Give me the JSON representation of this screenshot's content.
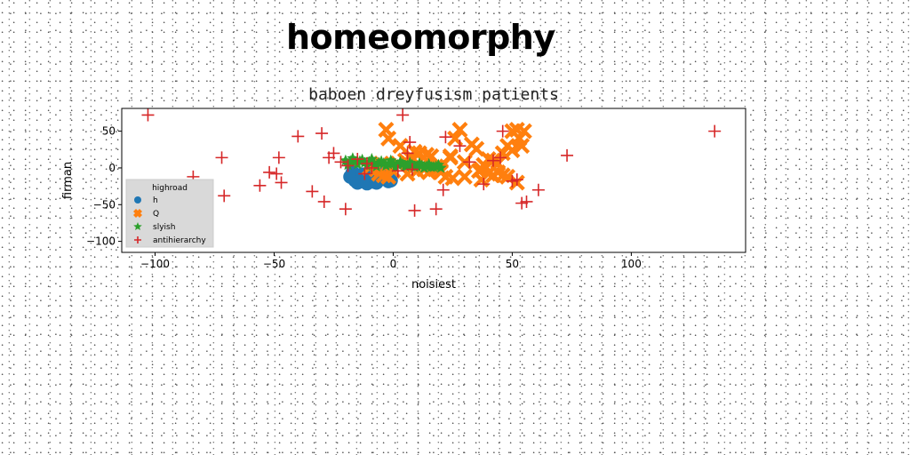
{
  "title": "homeomorphy",
  "chart_data": {
    "type": "scatter",
    "subtitle": "baboen dreyfusism patients",
    "xlabel": "noisiest",
    "ylabel": "firman",
    "xlim": [
      -114,
      148
    ],
    "ylim": [
      -115,
      81
    ],
    "xticks": [
      -100,
      -50,
      0,
      50,
      100
    ],
    "yticks": [
      50,
      0,
      -50,
      -100
    ],
    "grid": false,
    "legend": {
      "title": "highroad",
      "position": "lower-left"
    },
    "series": [
      {
        "name": "h",
        "marker": "circle",
        "color": "#1f77b4",
        "x": [
          -18,
          -16,
          -14,
          -12,
          -10,
          -8,
          -6,
          -4,
          -2,
          -1,
          -17,
          -13,
          -9,
          -5,
          -3,
          -15,
          -11,
          -7
        ],
        "y": [
          -12,
          -17,
          -18,
          -15,
          -13,
          -19,
          -16,
          -14,
          -18,
          -17,
          -6,
          -9,
          -8,
          -10,
          -7,
          -20,
          -21,
          -20
        ]
      },
      {
        "name": "Q",
        "marker": "x-bold",
        "color": "#ff7f0e",
        "x": [
          -10,
          -6,
          -4,
          -2,
          0,
          2,
          5,
          7,
          9,
          11,
          14,
          16,
          18,
          20,
          22,
          24,
          26,
          28,
          30,
          33,
          35,
          37,
          38,
          40,
          42,
          44,
          46,
          48,
          50,
          52,
          53,
          55,
          54,
          50,
          46,
          44,
          40,
          37,
          30,
          25,
          20,
          13,
          6,
          3,
          -3,
          -7,
          -2,
          10,
          15,
          19,
          24,
          48,
          52,
          36,
          42,
          8,
          -5
        ],
        "y": [
          0,
          -8,
          -10,
          -12,
          -4,
          6,
          10,
          14,
          22,
          20,
          18,
          16,
          2,
          -4,
          -12,
          14,
          40,
          52,
          8,
          32,
          26,
          -2,
          4,
          -8,
          10,
          -6,
          20,
          30,
          50,
          52,
          40,
          50,
          30,
          24,
          -10,
          6,
          12,
          -16,
          -12,
          -14,
          -6,
          -2,
          -8,
          30,
          52,
          -2,
          40,
          -4,
          -6,
          0,
          16,
          -12,
          -20,
          -4,
          -10,
          14,
          6
        ],
        "x2": [],
        "y2": []
      },
      {
        "name": "slyish",
        "marker": "star",
        "color": "#2ca02c",
        "x": [
          -20,
          -18,
          -16,
          -14,
          -12,
          -10,
          -8,
          -6,
          -4,
          -2,
          0,
          2,
          4,
          6,
          8,
          10,
          12,
          14,
          16,
          18,
          20,
          -19,
          -15,
          -11,
          -7,
          -3,
          1,
          5,
          9,
          13,
          17,
          -17,
          -13,
          -9,
          -5,
          -1,
          3,
          7,
          11,
          15,
          19
        ],
        "y": [
          10,
          9,
          8,
          9,
          7,
          8,
          6,
          7,
          6,
          5,
          6,
          4,
          5,
          3,
          4,
          2,
          3,
          2,
          1,
          2,
          0,
          4,
          5,
          3,
          2,
          3,
          1,
          2,
          1,
          0,
          1,
          13,
          11,
          12,
          9,
          10,
          8,
          7,
          6,
          5,
          4
        ]
      },
      {
        "name": "antihierarchy",
        "marker": "plus",
        "color": "#d62728",
        "x": [
          -103,
          -84,
          -72,
          -71,
          -56,
          -52,
          -49,
          -48,
          -47,
          -40,
          -34,
          -30,
          -29,
          -27,
          -25,
          -20,
          -19,
          -12,
          -11,
          -9,
          2,
          4,
          6,
          7,
          9,
          18,
          21,
          22,
          32,
          38,
          42,
          46,
          50,
          52,
          56,
          61,
          73,
          135,
          -22,
          -15,
          8,
          28,
          45,
          54
        ],
        "y": [
          72,
          -12,
          14,
          -38,
          -24,
          -6,
          -8,
          14,
          -20,
          43,
          -32,
          47,
          -46,
          14,
          20,
          -56,
          3,
          -8,
          6,
          0,
          -4,
          72,
          20,
          35,
          -58,
          -56,
          -30,
          42,
          8,
          -22,
          10,
          50,
          -18,
          -16,
          -46,
          -30,
          17,
          50,
          8,
          12,
          -2,
          30,
          14,
          -48
        ]
      }
    ]
  },
  "colors": {
    "h": "#1f77b4",
    "Q": "#ff7f0e",
    "slyish": "#2ca02c",
    "antihierarchy": "#d62728"
  }
}
